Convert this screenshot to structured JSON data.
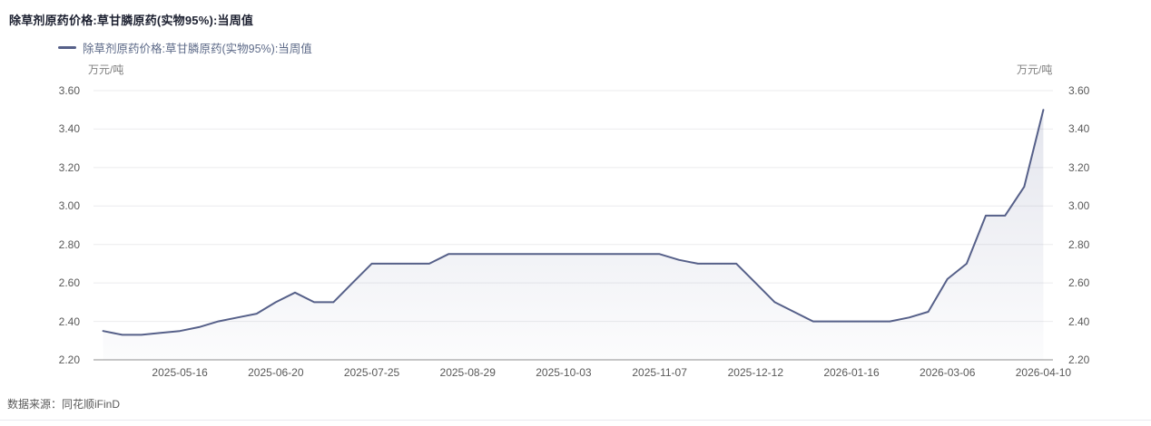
{
  "page": {
    "title": "除草剂原药价格:草甘膦原药(实物95%):当周值",
    "source_label": "数据来源：同花顺iFinD"
  },
  "legend": {
    "label": "除草剂原药价格:草甘膦原药(实物95%):当周值"
  },
  "axes": {
    "unit_left": "万元/吨",
    "unit_right": "万元/吨"
  },
  "colors": {
    "line": "#566089",
    "area_top": "rgba(86,96,145,0.16)",
    "area_bottom": "rgba(86,96,145,0.02)",
    "grid": "#ebebee",
    "axis_line": "#8f8f8f",
    "title_text": "#1c2030",
    "legend_text": "#5d6a88",
    "tick_text": "#595959",
    "unit_text": "#7f7f7f",
    "source_text": "#595959"
  },
  "chart_data": {
    "type": "line",
    "title": "除草剂原药价格:草甘膦原药(实物95%):当周值",
    "series_name": "除草剂原药价格:草甘膦原药(实物95%):当周值",
    "unit": "万元/吨",
    "frequency": "weekly",
    "ylim": [
      2.2,
      3.6
    ],
    "ytick_labels": [
      "3.60",
      "3.40",
      "3.20",
      "3.00",
      "2.80",
      "2.60",
      "2.40",
      "2.20"
    ],
    "xtick_labels": [
      "2025-05-16",
      "2025-06-20",
      "2025-07-25",
      "2025-08-29",
      "2025-10-03",
      "2025-11-07",
      "2025-12-12",
      "2026-01-16",
      "2026-03-06",
      "2026-04-10"
    ],
    "xtick_indices": [
      4,
      9,
      14,
      19,
      24,
      29,
      34,
      39,
      44,
      49
    ],
    "values": [
      2.35,
      2.33,
      2.33,
      2.34,
      2.35,
      2.37,
      2.4,
      2.42,
      2.44,
      2.5,
      2.55,
      2.5,
      2.5,
      2.6,
      2.7,
      2.7,
      2.7,
      2.7,
      2.75,
      2.75,
      2.75,
      2.75,
      2.75,
      2.75,
      2.75,
      2.75,
      2.75,
      2.75,
      2.75,
      2.75,
      2.72,
      2.7,
      2.7,
      2.7,
      2.6,
      2.5,
      2.45,
      2.4,
      2.4,
      2.4,
      2.4,
      2.4,
      2.42,
      2.45,
      2.62,
      2.7,
      2.95,
      2.95,
      3.1,
      3.5
    ],
    "grid": true,
    "legend_position": "top-left",
    "area_fill": "vertical-gradient"
  }
}
